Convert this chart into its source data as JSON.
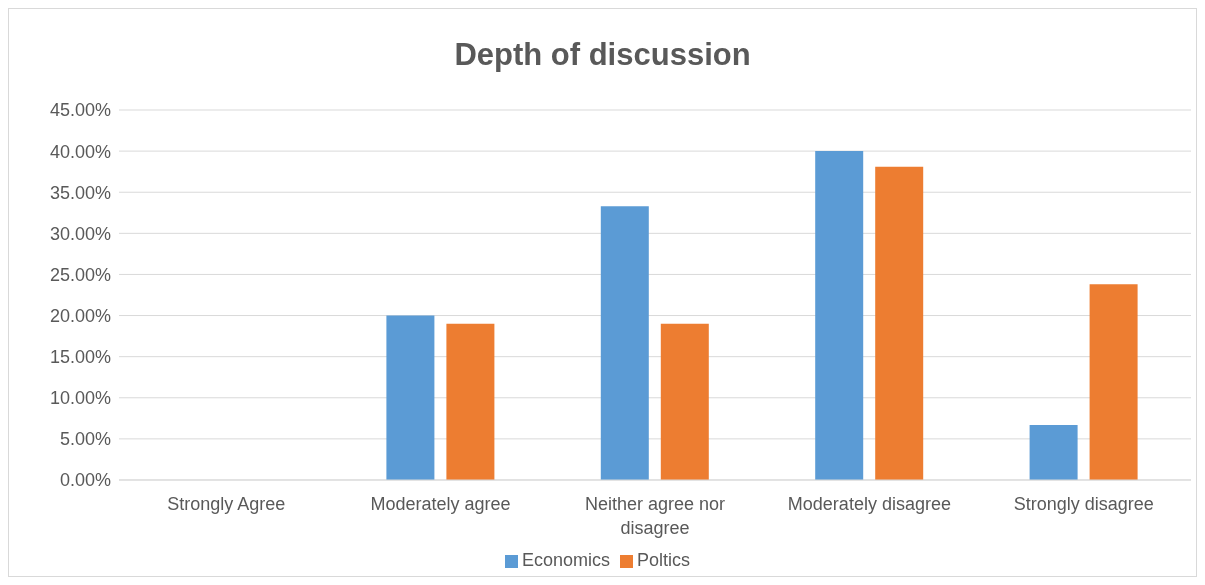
{
  "chart_data": {
    "type": "bar",
    "title": "Depth of discussion",
    "categories": [
      "Strongly Agree",
      "Moderately agree",
      "Neither agree nor disagree",
      "Moderately disagree",
      "Strongly disagree"
    ],
    "series": [
      {
        "name": "Economics",
        "color": "#5b9bd5",
        "values": [
          0,
          20,
          33.3,
          40,
          6.7
        ]
      },
      {
        "name": "Poltics",
        "color": "#ed7d31",
        "values": [
          0,
          19.0,
          19.0,
          38.1,
          23.8
        ]
      }
    ],
    "ylim": [
      0,
      45
    ],
    "yticks": [
      {
        "value": 0,
        "label": "0.00%"
      },
      {
        "value": 5,
        "label": "5.00%"
      },
      {
        "value": 10,
        "label": "10.00%"
      },
      {
        "value": 15,
        "label": "15.00%"
      },
      {
        "value": 20,
        "label": "20.00%"
      },
      {
        "value": 25,
        "label": "25.00%"
      },
      {
        "value": 30,
        "label": "30.00%"
      },
      {
        "value": 35,
        "label": "35.00%"
      },
      {
        "value": 40,
        "label": "40.00%"
      },
      {
        "value": 45,
        "label": "45.00%"
      }
    ],
    "grid": "y",
    "legend": "bottom"
  }
}
